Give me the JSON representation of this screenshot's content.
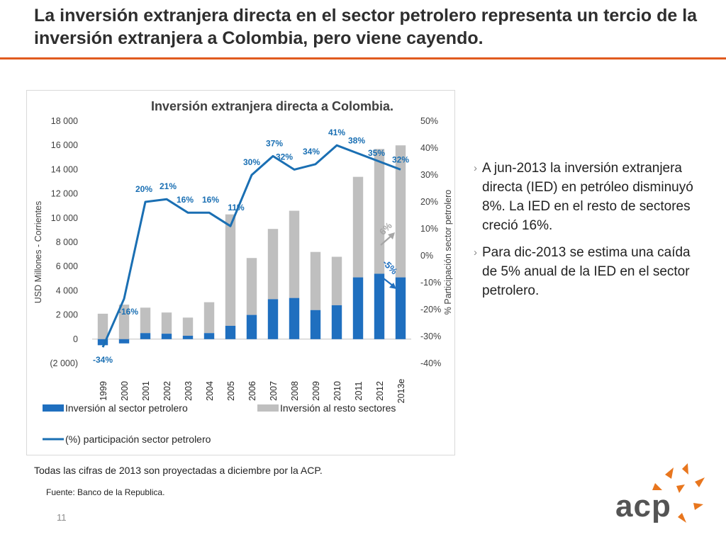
{
  "slide": {
    "title": "La inversión extranjera directa en el sector petrolero representa un tercio de la inversión extranjera a Colombia, pero viene cayendo.",
    "bullets": [
      "A jun-2013 la inversión extranjera directa (IED) en petróleo disminuyó 8%. La IED en el resto de sectores creció 16%.",
      "Para dic-2013 se estima una caída de 5% anual de la IED en el sector petrolero."
    ],
    "note": "Todas las cifras de 2013 son proyectadas a diciembre por la ACP.",
    "source": "Fuente: Banco de la Republica.",
    "page_number": "11",
    "logo_text": "acp",
    "colors": {
      "accent": "#e05a1e",
      "petroleo": "#1f6fbf",
      "resto": "#bfbfbf",
      "line": "#1a6fb3"
    }
  },
  "chart_data": {
    "type": "bar",
    "title": "Inversión extranjera directa a Colombia.",
    "ylabel": "USD Millones - Corrientes",
    "y2label": "% Participación sector petrolero",
    "ylim": [
      -2000,
      18000
    ],
    "y2lim": [
      -40,
      50
    ],
    "yticks": [
      "(2 000)",
      "0",
      "2 000",
      "4 000",
      "6 000",
      "8 000",
      "10 000",
      "12 000",
      "14 000",
      "16 000",
      "18 000"
    ],
    "y2ticks": [
      "-40%",
      "-30%",
      "-20%",
      "-10%",
      "0%",
      "10%",
      "20%",
      "30%",
      "40%",
      "50%"
    ],
    "categories": [
      "1999",
      "2000",
      "2001",
      "2002",
      "2003",
      "2004",
      "2005",
      "2006",
      "2007",
      "2008",
      "2009",
      "2010",
      "2011",
      "2012",
      "2013e"
    ],
    "series": [
      {
        "name": "Inversión al sector petrolero",
        "kind": "stacked-bar",
        "values": [
          -500,
          -350,
          500,
          450,
          280,
          500,
          1100,
          2000,
          3300,
          3400,
          2400,
          2800,
          5100,
          5400,
          5100
        ]
      },
      {
        "name": "Inversión al resto sectores",
        "kind": "stacked-bar",
        "values": [
          2100,
          2850,
          2100,
          1750,
          1500,
          2550,
          9200,
          4700,
          5800,
          7200,
          4800,
          4000,
          8300,
          10300,
          10900
        ]
      },
      {
        "name": "(%) participación sector petrolero",
        "kind": "line",
        "axis": "secondary",
        "values": [
          -34,
          -16,
          20,
          21,
          16,
          16,
          11,
          30,
          37,
          32,
          34,
          41,
          38,
          35,
          32
        ],
        "labels": [
          "-34%",
          "-16%",
          "20%",
          "21%",
          "16%",
          "16%",
          "11%",
          "30%",
          "37%",
          "32%",
          "34%",
          "41%",
          "38%",
          "35%",
          "32%"
        ]
      }
    ],
    "annotations": [
      {
        "text": "6%",
        "color": "#a6a6a6"
      },
      {
        "text": "-5%",
        "color": "#1f6fbf"
      }
    ],
    "legend_position": "bottom"
  }
}
